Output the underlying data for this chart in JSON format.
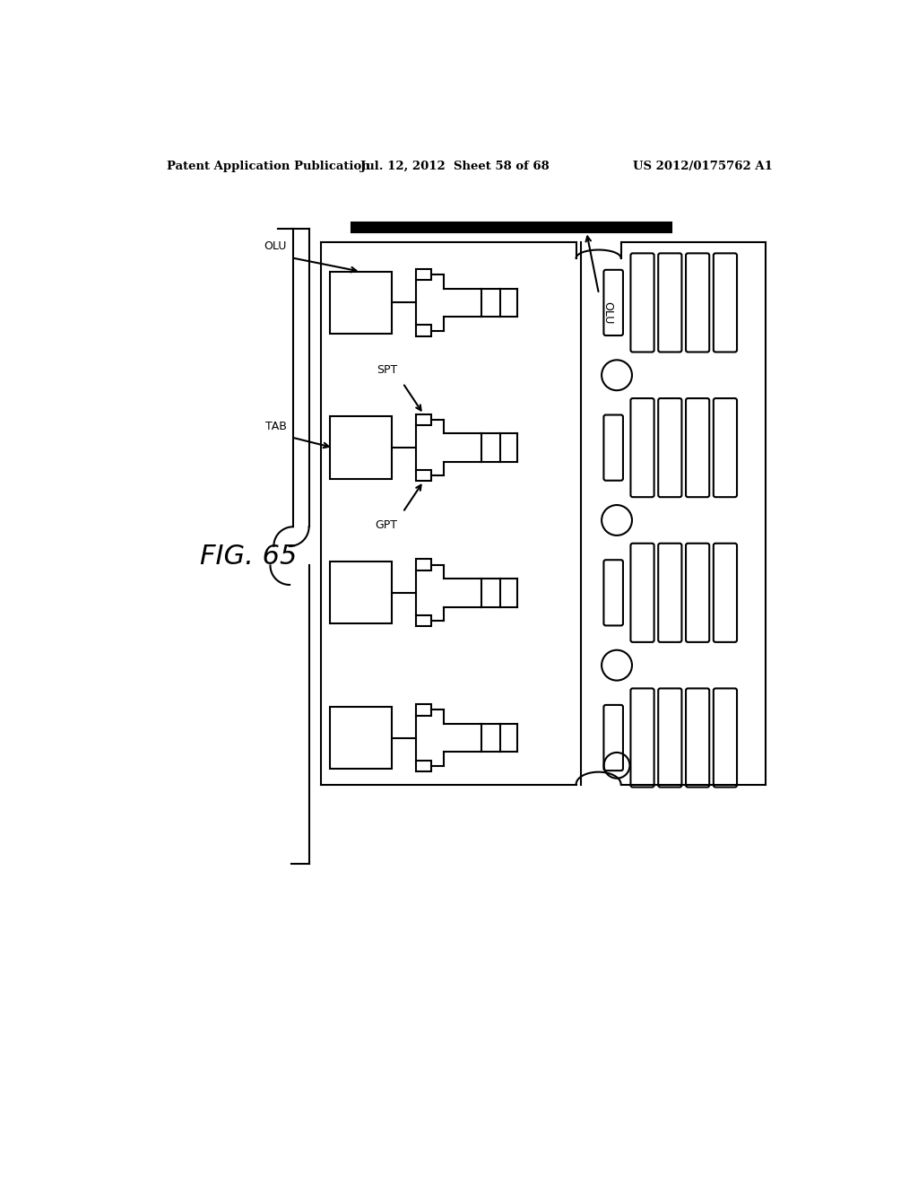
{
  "fig_label": "FIG. 65",
  "header_left": "Patent Application Publication",
  "header_mid": "Jul. 12, 2012  Sheet 58 of 68",
  "header_right": "US 2012/0175762 A1",
  "bg_color": "#ffffff",
  "line_color": "#000000",
  "label_OLU_top": "OLU",
  "label_OLU_mid": "OLU",
  "label_TAB": "TAB",
  "label_SPT": "SPT",
  "label_GPT": "GPT"
}
